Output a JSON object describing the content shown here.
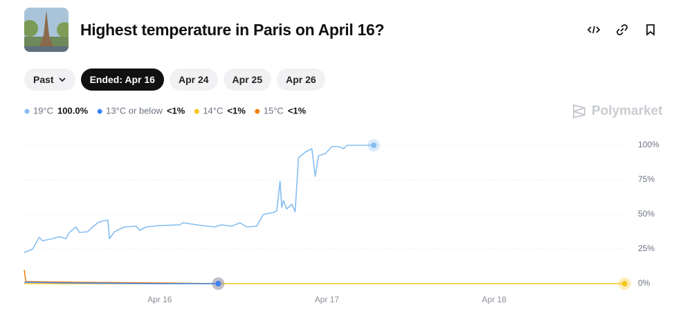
{
  "header": {
    "title": "Highest temperature in Paris on April 16?"
  },
  "tabs": [
    "Past",
    "Ended: Apr 16",
    "Apr 24",
    "Apr 25",
    "Apr 26"
  ],
  "brand": "Polymarket",
  "chart_data": {
    "type": "line",
    "series": [
      {
        "name": "19°C",
        "current": "100.0%",
        "color": "#85bdf0",
        "x": [
          15.19,
          15.24,
          15.28,
          15.3,
          15.36,
          15.4,
          15.44,
          15.46,
          15.5,
          15.52,
          15.57,
          15.59,
          15.63,
          15.65,
          15.69,
          15.7,
          15.73,
          15.79,
          15.86,
          15.88,
          15.92,
          16.0,
          16.12,
          16.14,
          16.25,
          16.33,
          16.37,
          16.43,
          16.48,
          16.52,
          16.58,
          16.62,
          16.68,
          16.7,
          16.72,
          16.73,
          16.74,
          16.76,
          16.79,
          16.81,
          16.83,
          16.87,
          16.91,
          16.93,
          16.95,
          16.99,
          17.03,
          17.07,
          17.1,
          17.12,
          17.28
        ],
        "values": [
          22.5,
          25,
          33.5,
          31,
          32.5,
          34,
          32.5,
          37,
          41,
          37,
          37.5,
          40,
          44,
          45,
          46,
          32.5,
          37.5,
          41,
          41.5,
          38.5,
          41,
          42,
          42.5,
          44,
          42,
          41,
          42.5,
          41.5,
          44,
          41,
          41.5,
          50,
          51.5,
          52.5,
          74,
          55,
          60,
          54,
          57.5,
          52,
          91,
          95,
          97.5,
          77.5,
          92.5,
          94,
          99,
          99,
          97.5,
          100,
          100
        ]
      },
      {
        "name": "13°C or below",
        "current": "<1%",
        "color": "#3b82f6",
        "x": [
          15.19,
          15.5,
          16.0,
          16.35
        ],
        "values": [
          1,
          0.5,
          0,
          0
        ]
      },
      {
        "name": "14°C",
        "current": "<1%",
        "color": "#f5c518",
        "x": [
          15.19,
          16.35,
          18.78
        ],
        "values": [
          0,
          0,
          0
        ]
      },
      {
        "name": "15°C",
        "current": "<1%",
        "color": "#f07f0c",
        "x": [
          15.19,
          15.2,
          15.5,
          16.0,
          16.35
        ],
        "values": [
          10,
          1.5,
          1,
          0.5,
          0
        ]
      }
    ],
    "xlim": [
      15.19,
      18.79
    ],
    "xticks": [
      {
        "value": 16,
        "label": "Apr 16"
      },
      {
        "value": 17,
        "label": "Apr 17"
      },
      {
        "value": 18,
        "label": "Apr 18"
      }
    ],
    "ylim": [
      0,
      100
    ],
    "yticks": [
      {
        "value": 0,
        "label": "0%"
      },
      {
        "value": 25,
        "label": "25%"
      },
      {
        "value": 50,
        "label": "50%"
      },
      {
        "value": 75,
        "label": "75%"
      },
      {
        "value": 100,
        "label": "100%"
      }
    ],
    "grid": true
  }
}
